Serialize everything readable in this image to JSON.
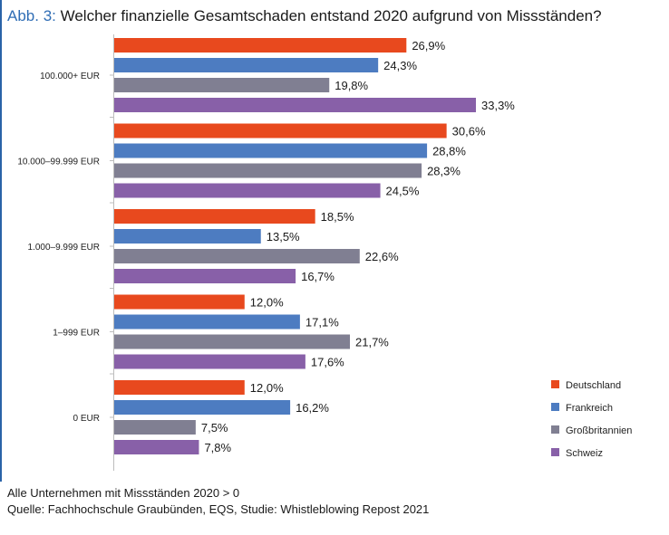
{
  "title": {
    "figure_label": "Abb. 3:",
    "text": "Welcher finanzielle Gesamtschaden entstand 2020 aufgrund von Missständen?"
  },
  "footnotes": {
    "line1": "Alle Unternehmen mit Missständen 2020 > 0",
    "line2": "Quelle: Fachhochschule Graubünden, EQS, Studie: Whistleblowing Repost 2021"
  },
  "chart_data": {
    "type": "bar",
    "orientation": "horizontal",
    "categories": [
      "100.000+ EUR",
      "10.000–99.999 EUR",
      "1.000–9.999 EUR",
      "1–999 EUR",
      "0 EUR"
    ],
    "series": [
      {
        "name": "Deutschland",
        "color": "#e8491e",
        "values": [
          26.9,
          30.6,
          18.5,
          12.0,
          12.0
        ],
        "labels": [
          "26,9%",
          "30,6%",
          "18,5%",
          "12,0%",
          "12,0%"
        ]
      },
      {
        "name": "Frankreich",
        "color": "#4d7cc1",
        "values": [
          24.3,
          28.8,
          13.5,
          17.1,
          16.2
        ],
        "labels": [
          "24,3%",
          "28,8%",
          "13,5%",
          "17,1%",
          "16,2%"
        ]
      },
      {
        "name": "Großbritannien",
        "color": "#807f92",
        "values": [
          19.8,
          28.3,
          22.6,
          21.7,
          7.5
        ],
        "labels": [
          "19,8%",
          "28,3%",
          "22,6%",
          "21,7%",
          "7,5%"
        ]
      },
      {
        "name": "Schweiz",
        "color": "#8860a8",
        "values": [
          33.3,
          24.5,
          16.7,
          17.6,
          7.8
        ],
        "labels": [
          "33,3%",
          "24,5%",
          "16,7%",
          "17,6%",
          "7,8%"
        ]
      }
    ],
    "xlim": [
      0,
      33.3
    ],
    "legend_position": "bottom-right",
    "grid": false
  }
}
